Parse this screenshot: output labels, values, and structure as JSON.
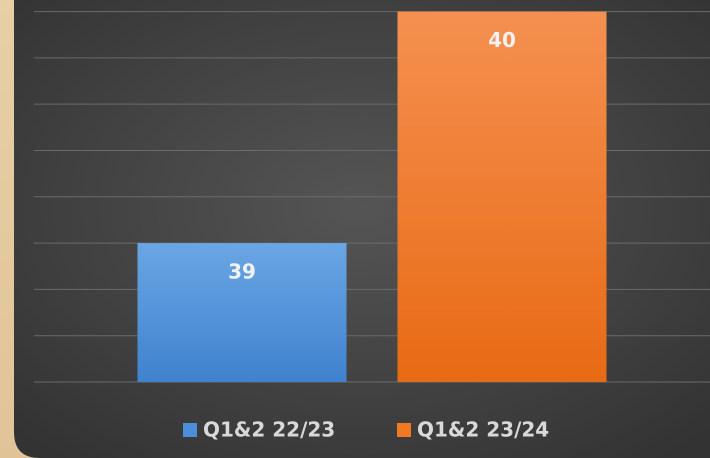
{
  "chart_data": {
    "type": "bar",
    "series": [
      {
        "name": "Q1&2 22/23",
        "color": "#4a8fd8",
        "values": [
          39
        ]
      },
      {
        "name": "Q1&2 23/24",
        "color": "#f07a24",
        "values": [
          40
        ]
      }
    ],
    "ylim": [
      38.4,
      40.05
    ],
    "yticks": [
      38.4,
      38.6,
      38.8,
      39.0,
      39.2,
      39.4,
      39.6,
      39.8,
      40.0
    ],
    "grid": true,
    "legend": "bottom"
  }
}
